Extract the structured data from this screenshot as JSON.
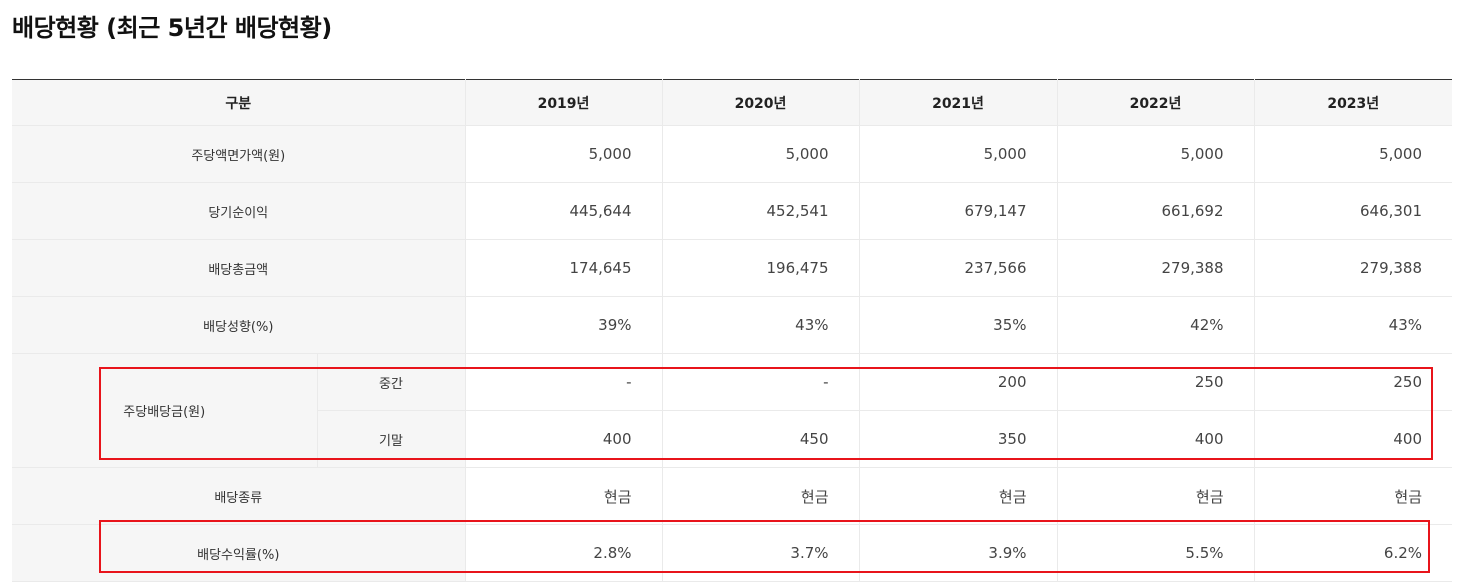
{
  "page": {
    "title": "배당현황 (최근 5년간 배당현황)"
  },
  "table": {
    "header_label": "구분",
    "years": [
      "2019년",
      "2020년",
      "2021년",
      "2022년",
      "2023년"
    ],
    "rows": {
      "face_value": {
        "label": "주당액면가액(원)",
        "values": [
          "5,000",
          "5,000",
          "5,000",
          "5,000",
          "5,000"
        ]
      },
      "net_income": {
        "label": "당기순이익",
        "values": [
          "445,644",
          "452,541",
          "679,147",
          "661,692",
          "646,301"
        ]
      },
      "total_dividend": {
        "label": "배당총금액",
        "values": [
          "174,645",
          "196,475",
          "237,566",
          "279,388",
          "279,388"
        ]
      },
      "payout_ratio": {
        "label": "배당성향(%)",
        "values": [
          "39%",
          "43%",
          "35%",
          "42%",
          "43%"
        ]
      },
      "dps": {
        "label": "주당배당금(원)",
        "interim": {
          "label": "중간",
          "values": [
            "-",
            "-",
            "200",
            "250",
            "250"
          ]
        },
        "final": {
          "label": "기말",
          "values": [
            "400",
            "450",
            "350",
            "400",
            "400"
          ]
        }
      },
      "dividend_type": {
        "label": "배당종류",
        "values": [
          "현금",
          "현금",
          "현금",
          "현금",
          "현금"
        ]
      },
      "dividend_yield": {
        "label": "배당수익률(%)",
        "values": [
          "2.8%",
          "3.7%",
          "3.9%",
          "5.5%",
          "6.2%"
        ]
      }
    }
  },
  "highlight": {
    "color": "#e8141b"
  }
}
